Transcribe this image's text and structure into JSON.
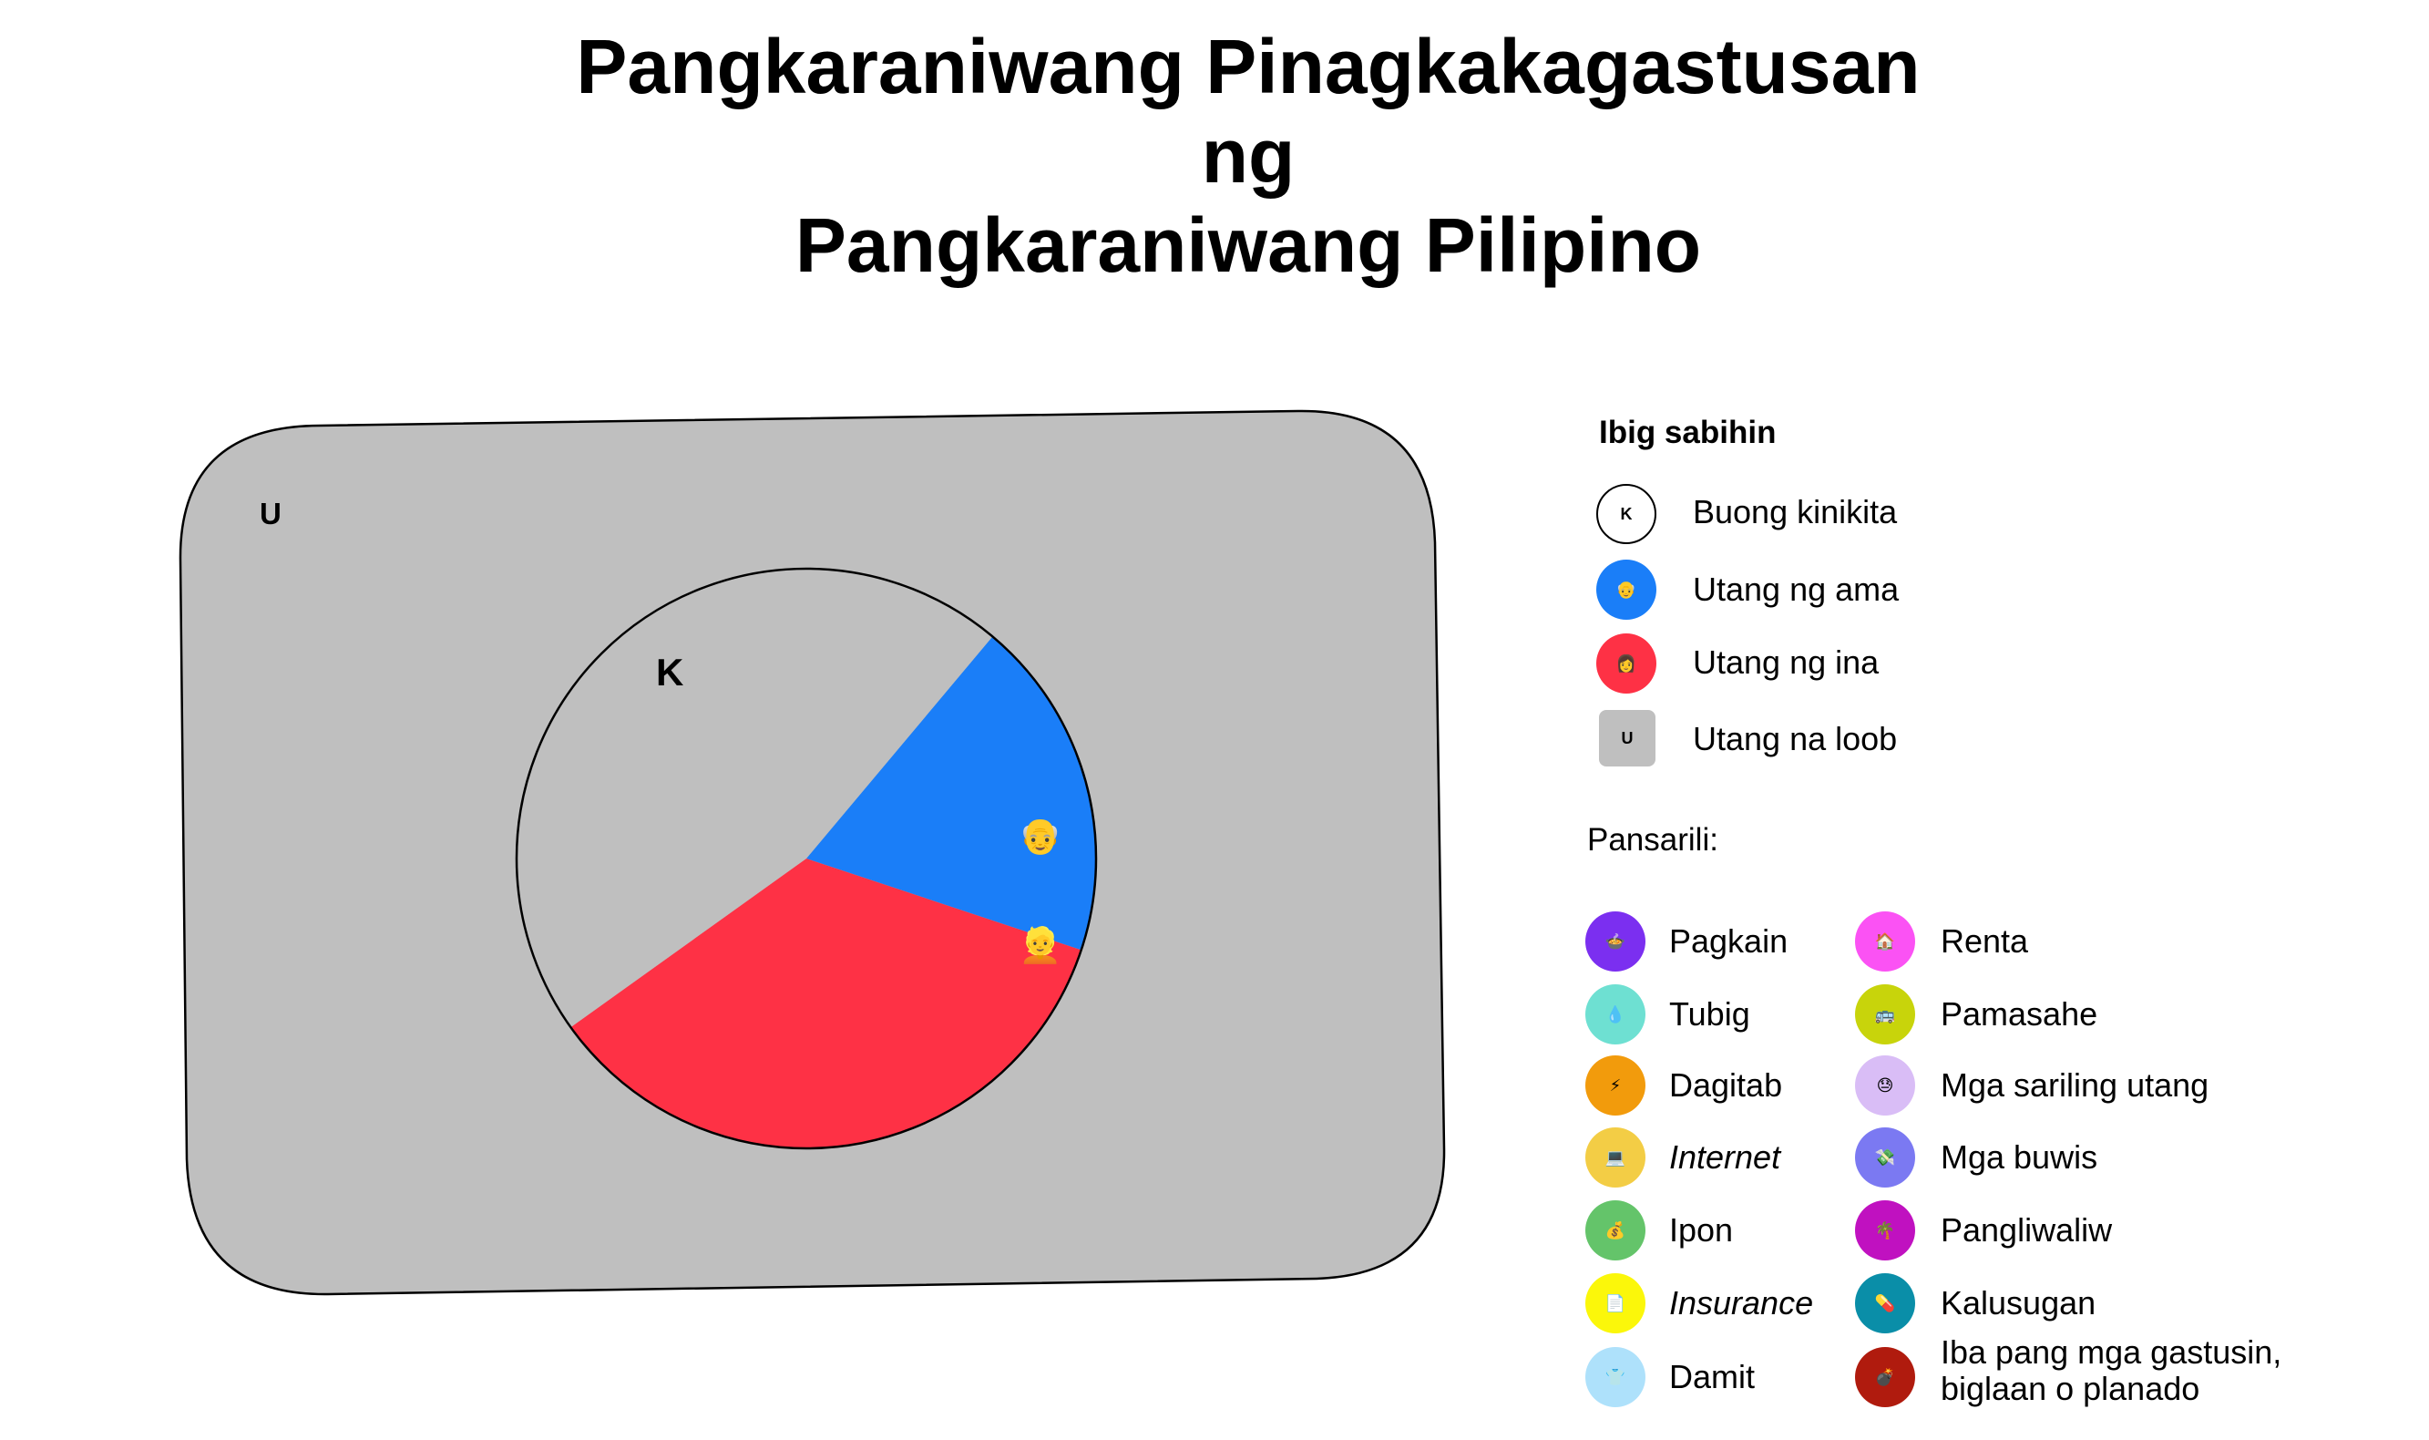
{
  "title": [
    "Pangkaraniwang Pinagkakagastusan",
    "ng",
    "Pangkaraniwang Pilipino"
  ],
  "chart_data": {
    "type": "pie",
    "universe_label": "U",
    "pie_label": "K",
    "slices": [
      {
        "name": "Utang ng ama",
        "value": 19,
        "color": "#1a7ef8",
        "icon": "old-man-emoji",
        "glyph": "👴"
      },
      {
        "name": "Utang ng ina",
        "value": 35,
        "color": "#fe3145",
        "icon": "man-emoji",
        "glyph": "👱"
      },
      {
        "name": "Utang na loob",
        "value": 46,
        "color": "#bfbfbf",
        "icon": "",
        "glyph": ""
      }
    ],
    "colors": {
      "universe": "#bfbfbf",
      "outline": "#000000"
    }
  },
  "legend": {
    "heading": "Ibig sabihin",
    "items": [
      {
        "label": "Buong kinikita",
        "mark": "K",
        "color": "#ffffff",
        "shape": "circle"
      },
      {
        "label": "Utang ng ama",
        "mark": "👴",
        "color": "#1a7ef8",
        "shape": "circle"
      },
      {
        "label": "Utang ng ina",
        "mark": "👩",
        "color": "#fe3145",
        "shape": "circle"
      },
      {
        "label": "Utang na loob",
        "mark": "U",
        "color": "#bfbfbf",
        "shape": "square"
      }
    ],
    "personal_heading": "Pansarili:",
    "personal_left": [
      {
        "label": "Pagkain",
        "color": "#7b2ff0",
        "icon": "food-icon",
        "glyph": "🍲",
        "italic": false
      },
      {
        "label": "Tubig",
        "color": "#6ee0d2",
        "icon": "water-icon",
        "glyph": "💧",
        "italic": false
      },
      {
        "label": "Dagitab",
        "color": "#f29b0c",
        "icon": "electricity-icon",
        "glyph": "⚡",
        "italic": false
      },
      {
        "label": "Internet",
        "color": "#f3cd45",
        "icon": "laptop-icon",
        "glyph": "💻",
        "italic": true
      },
      {
        "label": "Ipon",
        "color": "#64c46a",
        "icon": "savings-icon",
        "glyph": "💰",
        "italic": false
      },
      {
        "label": "Insurance",
        "color": "#fbf70a",
        "icon": "document-icon",
        "glyph": "📄",
        "italic": true
      },
      {
        "label": "Damit",
        "color": "#aee1fb",
        "icon": "shirt-icon",
        "glyph": "👕",
        "italic": false
      }
    ],
    "personal_right": [
      {
        "label": "Renta",
        "color": "#fb52f4",
        "icon": "house-icon",
        "glyph": "🏠",
        "italic": false
      },
      {
        "label": "Pamasahe",
        "color": "#c8d40b",
        "icon": "jeepney-icon",
        "glyph": "🚌",
        "italic": false
      },
      {
        "label": "Mga sariling utang",
        "color": "#d9bdf6",
        "icon": "face-icon",
        "glyph": "😓",
        "italic": false
      },
      {
        "label": "Mga buwis",
        "color": "#7b79f2",
        "icon": "money-icon",
        "glyph": "💸",
        "italic": false
      },
      {
        "label": "Pangliwaliw",
        "color": "#c011c0",
        "icon": "palm-tree-icon",
        "glyph": "🌴",
        "italic": false
      },
      {
        "label": "Kalusugan",
        "color": "#0a8ea8",
        "icon": "medicine-icon",
        "glyph": "💊",
        "italic": false
      },
      {
        "label": "Iba pang mga gastusin,",
        "label2": "biglaan o planado",
        "color": "#b01b0e",
        "icon": "bomb-icon",
        "glyph": "💣",
        "italic": false
      }
    ]
  }
}
